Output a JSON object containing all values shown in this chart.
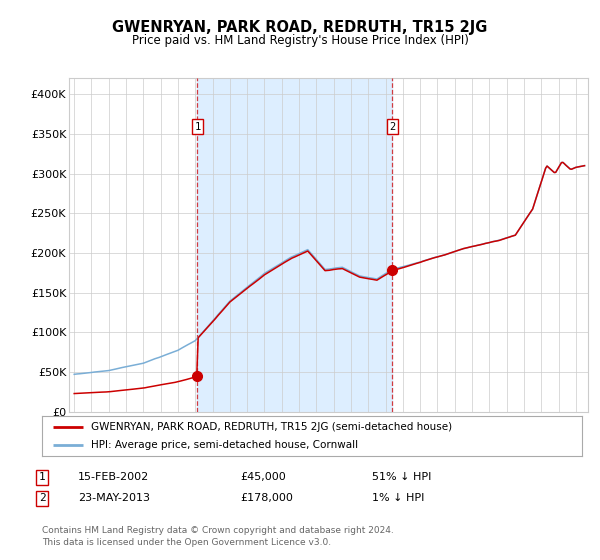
{
  "title": "GWENRYAN, PARK ROAD, REDRUTH, TR15 2JG",
  "subtitle": "Price paid vs. HM Land Registry's House Price Index (HPI)",
  "sale1_year": 2002.12,
  "sale1_price": 45000,
  "sale2_year": 2013.39,
  "sale2_price": 178000,
  "ylim": [
    0,
    420000
  ],
  "yticks": [
    0,
    50000,
    100000,
    150000,
    200000,
    250000,
    300000,
    350000,
    400000
  ],
  "ytick_labels": [
    "£0",
    "£50K",
    "£100K",
    "£150K",
    "£200K",
    "£250K",
    "£300K",
    "£350K",
    "£400K"
  ],
  "xlim_start": 1994.7,
  "xlim_end": 2024.7,
  "xtick_start": 1995,
  "xtick_end": 2024,
  "legend1_label": "GWENRYAN, PARK ROAD, REDRUTH, TR15 2JG (semi-detached house)",
  "legend2_label": "HPI: Average price, semi-detached house, Cornwall",
  "note1_text": "15-FEB-2002",
  "note1_price": "£45,000",
  "note1_hpi": "51% ↓ HPI",
  "note2_text": "23-MAY-2013",
  "note2_price": "£178,000",
  "note2_hpi": "1% ↓ HPI",
  "footer": "Contains HM Land Registry data © Crown copyright and database right 2024.\nThis data is licensed under the Open Government Licence v3.0.",
  "line_red": "#cc0000",
  "line_blue": "#7aaed6",
  "shade_color": "#ddeeff",
  "bg_color": "#ffffff",
  "grid_color": "#cccccc",
  "label_box_color": "#cc0000"
}
